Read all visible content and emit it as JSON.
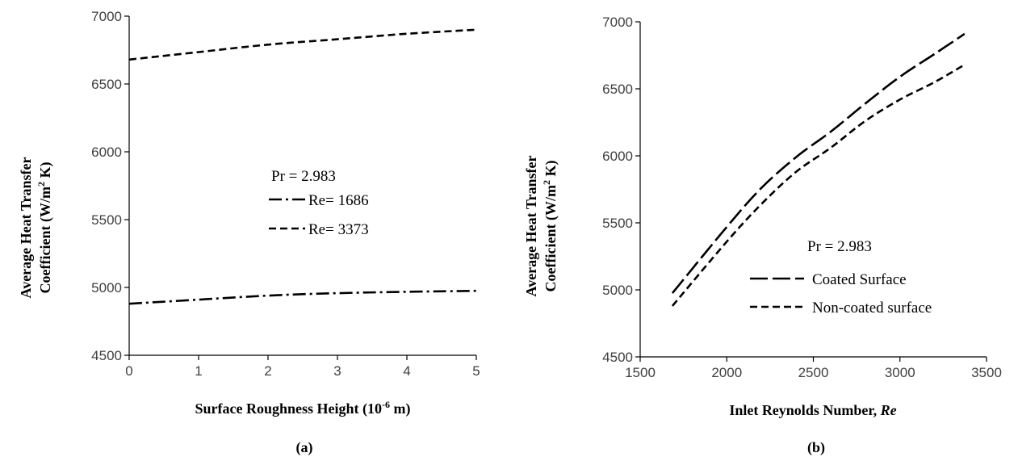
{
  "chart_data": [
    {
      "type": "line",
      "panel_label": "(a)",
      "xlabel": "Surface Roughness Height (10",
      "xlabel_sup": "-6",
      "xlabel_tail": " m)",
      "ylabel_line1": "Average Heat Transfer",
      "ylabel_line2_pre": "Coefficient (W/m",
      "ylabel_line2_sup": "2",
      "ylabel_line2_post": " K)",
      "xlim": [
        0,
        5
      ],
      "ylim": [
        4500,
        7000
      ],
      "x_ticks": [
        0,
        1,
        2,
        3,
        4,
        5
      ],
      "y_ticks": [
        4500,
        5000,
        5500,
        6000,
        6500,
        7000
      ],
      "x_tick_labels": [
        "0",
        "1",
        "2",
        "3",
        "4",
        "5"
      ],
      "y_tick_labels": [
        "4500",
        "5000",
        "5500",
        "6000",
        "6500",
        "7000"
      ],
      "grid": false,
      "legend_title": "Pr = 2.983",
      "series": [
        {
          "name": "Re= 1686",
          "style": "dash-dot",
          "x": [
            0,
            1,
            2,
            3,
            4,
            5
          ],
          "y": [
            4880,
            4910,
            4940,
            4958,
            4968,
            4975
          ]
        },
        {
          "name": "Re= 3373",
          "style": "short-dash",
          "x": [
            0,
            1,
            2,
            3,
            4,
            5
          ],
          "y": [
            6680,
            6735,
            6790,
            6830,
            6870,
            6900
          ]
        }
      ]
    },
    {
      "type": "line",
      "panel_label": "(b)",
      "xlabel": "Inlet Reynolds Number, ",
      "xlabel_italic": "Re",
      "ylabel_line1": "Average Heat Transfer",
      "ylabel_line2_pre": "Coefficient (W/m",
      "ylabel_line2_sup": "2",
      "ylabel_line2_post": " K)",
      "xlim": [
        1500,
        3500
      ],
      "ylim": [
        4500,
        7000
      ],
      "x_ticks": [
        1500,
        2000,
        2500,
        3000,
        3500
      ],
      "y_ticks": [
        4500,
        5000,
        5500,
        6000,
        6500,
        7000
      ],
      "x_tick_labels": [
        "1500",
        "2000",
        "2500",
        "3000",
        "3500"
      ],
      "y_tick_labels": [
        "4500",
        "5000",
        "5500",
        "6000",
        "6500",
        "7000"
      ],
      "grid": false,
      "legend_title": "Pr = 2.983",
      "series": [
        {
          "name": "Coated Surface",
          "style": "long-dash",
          "x": [
            1686,
            2000,
            2200,
            2400,
            2600,
            2800,
            3000,
            3200,
            3373
          ],
          "y": [
            4975,
            5470,
            5760,
            5990,
            6180,
            6390,
            6590,
            6760,
            6910
          ]
        },
        {
          "name": "Non-coated surface",
          "style": "short-dash",
          "x": [
            1686,
            2000,
            2200,
            2400,
            2600,
            2800,
            3000,
            3200,
            3373
          ],
          "y": [
            4880,
            5360,
            5640,
            5880,
            6060,
            6260,
            6420,
            6550,
            6680
          ]
        }
      ]
    }
  ]
}
